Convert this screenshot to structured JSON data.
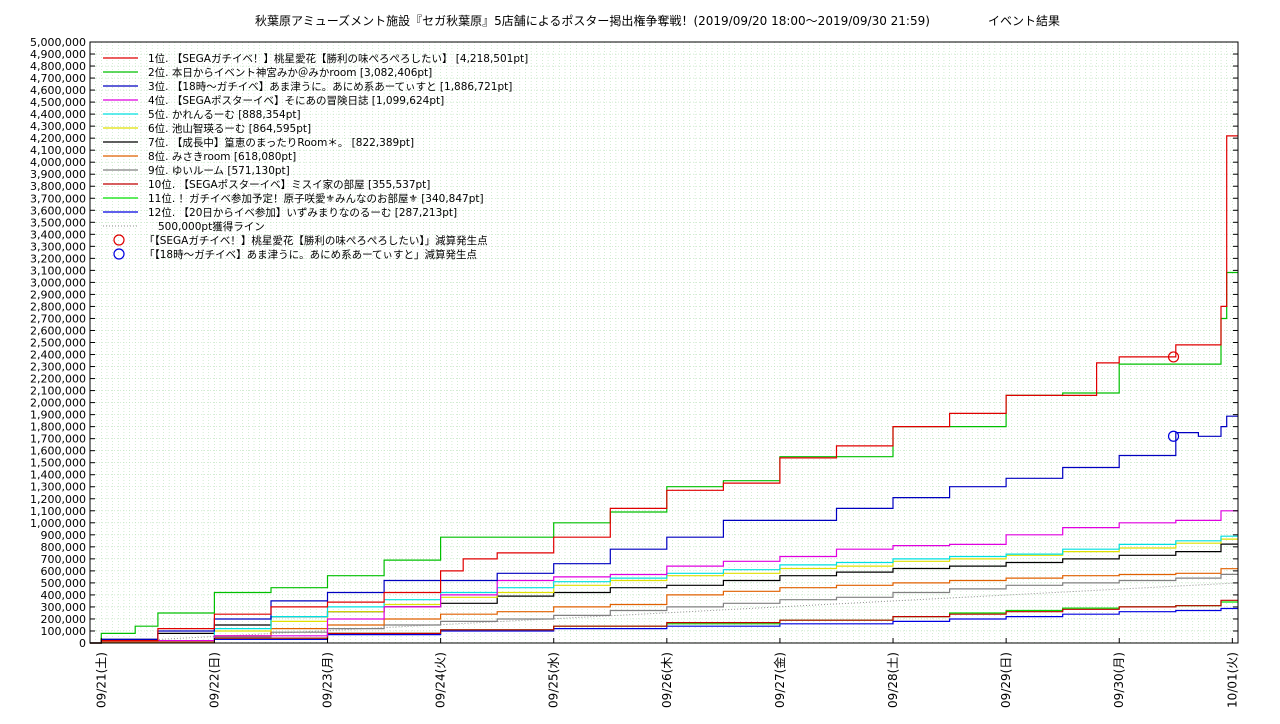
{
  "chart_data": {
    "type": "line",
    "title": "秋葉原アミューズメント施設『セガ秋葉原』5店舗によるポスター掲出権争奪戦！(2019/09/20 18:00〜2019/09/30 21:59)",
    "subtitle": "イベント結果",
    "xlabel": "",
    "ylabel": "",
    "ylim": [
      0,
      5000000
    ],
    "yticks": [
      0,
      100000,
      200000,
      300000,
      400000,
      500000,
      600000,
      700000,
      800000,
      900000,
      1000000,
      1100000,
      1200000,
      1300000,
      1400000,
      1500000,
      1600000,
      1700000,
      1800000,
      1900000,
      2000000,
      2100000,
      2200000,
      2300000,
      2400000,
      2500000,
      2600000,
      2700000,
      2800000,
      2900000,
      3000000,
      3100000,
      3200000,
      3300000,
      3400000,
      3500000,
      3600000,
      3700000,
      3800000,
      3900000,
      4000000,
      4100000,
      4200000,
      4300000,
      4400000,
      4500000,
      4600000,
      4700000,
      4800000,
      4900000,
      5000000
    ],
    "ytick_labels": [
      "0",
      "100,000",
      "200,000",
      "300,000",
      "400,000",
      "500,000",
      "600,000",
      "700,000",
      "800,000",
      "900,000",
      "1,000,000",
      "1,100,000",
      "1,200,000",
      "1,300,000",
      "1,400,000",
      "1,500,000",
      "1,600,000",
      "1,700,000",
      "1,800,000",
      "1,900,000",
      "2,000,000",
      "2,100,000",
      "2,200,000",
      "2,300,000",
      "2,400,000",
      "2,500,000",
      "2,600,000",
      "2,700,000",
      "2,800,000",
      "2,900,000",
      "3,000,000",
      "3,100,000",
      "3,200,000",
      "3,300,000",
      "3,400,000",
      "3,500,000",
      "3,600,000",
      "3,700,000",
      "3,800,000",
      "3,900,000",
      "4,000,000",
      "4,100,000",
      "4,200,000",
      "4,300,000",
      "4,400,000",
      "4,500,000",
      "4,600,000",
      "4,700,000",
      "4,800,000",
      "4,900,000",
      "5,000,000"
    ],
    "xlim": [
      -0.1,
      10.05
    ],
    "xticks": [
      0,
      1,
      2,
      3,
      4,
      5,
      6,
      7,
      8,
      9,
      10
    ],
    "xtick_labels": [
      "09/21(土)",
      "09/22(日)",
      "09/23(月)",
      "09/24(火)",
      "09/25(水)",
      "09/26(木)",
      "09/27(金)",
      "09/28(土)",
      "09/29(日)",
      "09/30(月)",
      "10/01(火)"
    ],
    "grid": true,
    "legend_position": "top-left",
    "series": [
      {
        "name": "1位. 【SEGAガチイベ！】桃星愛花【勝利の味ぺろぺろしたい】 [4,218,501pt]",
        "color": "#e00000",
        "points": [
          [
            -0.1,
            0
          ],
          [
            0,
            20000
          ],
          [
            0.5,
            120000
          ],
          [
            1,
            240000
          ],
          [
            1.5,
            300000
          ],
          [
            2,
            340000
          ],
          [
            2.5,
            420000
          ],
          [
            3,
            600000
          ],
          [
            3.2,
            700000
          ],
          [
            3.5,
            750000
          ],
          [
            4,
            880000
          ],
          [
            4.5,
            1120000
          ],
          [
            5,
            1270000
          ],
          [
            5.5,
            1330000
          ],
          [
            6,
            1540000
          ],
          [
            6.5,
            1640000
          ],
          [
            7,
            1800000
          ],
          [
            7.5,
            1910000
          ],
          [
            8,
            2060000
          ],
          [
            8.8,
            2330000
          ],
          [
            9,
            2380000
          ],
          [
            9.5,
            2480000
          ],
          [
            9.9,
            2800000
          ],
          [
            9.95,
            4218501
          ],
          [
            10.05,
            4218501
          ]
        ]
      },
      {
        "name": "2位. 本日からイベント神宮みか＠みかroom [3,082,406pt]",
        "color": "#00c000",
        "points": [
          [
            -0.1,
            0
          ],
          [
            0,
            80000
          ],
          [
            0.3,
            140000
          ],
          [
            0.5,
            250000
          ],
          [
            1,
            420000
          ],
          [
            1.5,
            460000
          ],
          [
            2,
            560000
          ],
          [
            2.5,
            690000
          ],
          [
            3,
            880000
          ],
          [
            3.5,
            880000
          ],
          [
            4,
            1000000
          ],
          [
            4.5,
            1090000
          ],
          [
            5,
            1300000
          ],
          [
            5.5,
            1350000
          ],
          [
            6,
            1550000
          ],
          [
            6.5,
            1550000
          ],
          [
            7,
            1800000
          ],
          [
            7.5,
            1800000
          ],
          [
            8,
            2060000
          ],
          [
            8.5,
            2080000
          ],
          [
            9,
            2320000
          ],
          [
            9.7,
            2320000
          ],
          [
            9.9,
            2700000
          ],
          [
            9.95,
            3082406
          ],
          [
            10.05,
            3082406
          ]
        ]
      },
      {
        "name": "3位. 【18時〜ガチイベ】あま津うに。あにめ系あーてぃすと [1,886,721pt]",
        "color": "#0000c0",
        "points": [
          [
            -0.1,
            0
          ],
          [
            0,
            30000
          ],
          [
            0.5,
            100000
          ],
          [
            1,
            200000
          ],
          [
            1.5,
            350000
          ],
          [
            2,
            420000
          ],
          [
            2.5,
            520000
          ],
          [
            3,
            520000
          ],
          [
            3.5,
            580000
          ],
          [
            4,
            660000
          ],
          [
            4.5,
            780000
          ],
          [
            5,
            880000
          ],
          [
            5.5,
            1020000
          ],
          [
            6,
            1020000
          ],
          [
            6.5,
            1120000
          ],
          [
            7,
            1210000
          ],
          [
            7.5,
            1300000
          ],
          [
            8,
            1370000
          ],
          [
            8.5,
            1460000
          ],
          [
            9,
            1560000
          ],
          [
            9.5,
            1750000
          ],
          [
            9.7,
            1720000
          ],
          [
            9.9,
            1800000
          ],
          [
            9.95,
            1886721
          ],
          [
            10.05,
            1886721
          ]
        ]
      },
      {
        "name": "4位. 【SEGAポスターイベ】そにあの冒険日誌 [1,099,624pt]",
        "color": "#e000e0",
        "points": [
          [
            -0.1,
            0
          ],
          [
            0,
            20000
          ],
          [
            1,
            60000
          ],
          [
            2,
            200000
          ],
          [
            2.5,
            300000
          ],
          [
            3,
            400000
          ],
          [
            3.5,
            520000
          ],
          [
            4,
            550000
          ],
          [
            4.5,
            570000
          ],
          [
            5,
            640000
          ],
          [
            5.5,
            680000
          ],
          [
            6,
            720000
          ],
          [
            6.5,
            780000
          ],
          [
            7,
            810000
          ],
          [
            7.5,
            820000
          ],
          [
            8,
            900000
          ],
          [
            8.5,
            960000
          ],
          [
            9,
            1000000
          ],
          [
            9.5,
            1020000
          ],
          [
            9.9,
            1100000
          ],
          [
            10.05,
            1099624
          ]
        ]
      },
      {
        "name": "5位. かれんるーむ [888,354pt]",
        "color": "#00e0e0",
        "points": [
          [
            -0.1,
            0
          ],
          [
            0,
            20000
          ],
          [
            1,
            120000
          ],
          [
            1.5,
            220000
          ],
          [
            2,
            300000
          ],
          [
            2.5,
            360000
          ],
          [
            3,
            420000
          ],
          [
            3.5,
            460000
          ],
          [
            4,
            510000
          ],
          [
            4.5,
            540000
          ],
          [
            5,
            580000
          ],
          [
            5.5,
            610000
          ],
          [
            6,
            650000
          ],
          [
            6.5,
            670000
          ],
          [
            7,
            700000
          ],
          [
            7.5,
            720000
          ],
          [
            8,
            740000
          ],
          [
            8.5,
            780000
          ],
          [
            9,
            820000
          ],
          [
            9.5,
            850000
          ],
          [
            9.9,
            888354
          ],
          [
            10.05,
            888354
          ]
        ]
      },
      {
        "name": "6位. 池山智瑛るーむ [864,595pt]",
        "color": "#e0e000",
        "points": [
          [
            -0.1,
            0
          ],
          [
            0,
            20000
          ],
          [
            1,
            100000
          ],
          [
            1.5,
            180000
          ],
          [
            2,
            260000
          ],
          [
            2.5,
            320000
          ],
          [
            3,
            380000
          ],
          [
            3.5,
            420000
          ],
          [
            4,
            480000
          ],
          [
            4.5,
            520000
          ],
          [
            5,
            560000
          ],
          [
            5.5,
            580000
          ],
          [
            6,
            620000
          ],
          [
            6.5,
            640000
          ],
          [
            7,
            680000
          ],
          [
            7.5,
            700000
          ],
          [
            8,
            730000
          ],
          [
            8.5,
            760000
          ],
          [
            9,
            790000
          ],
          [
            9.5,
            830000
          ],
          [
            9.9,
            864595
          ],
          [
            10.05,
            864595
          ]
        ]
      },
      {
        "name": "7位. 【成長中】篁恵のまったりRoom＊。 [822,389pt]",
        "color": "#000000",
        "points": [
          [
            -0.1,
            0
          ],
          [
            0,
            30000
          ],
          [
            0.5,
            80000
          ],
          [
            1,
            150000
          ],
          [
            1.5,
            220000
          ],
          [
            2,
            260000
          ],
          [
            2.5,
            300000
          ],
          [
            3,
            330000
          ],
          [
            3.5,
            390000
          ],
          [
            4,
            420000
          ],
          [
            4.5,
            460000
          ],
          [
            5,
            480000
          ],
          [
            5.5,
            520000
          ],
          [
            6,
            560000
          ],
          [
            6.5,
            590000
          ],
          [
            7,
            620000
          ],
          [
            7.5,
            640000
          ],
          [
            8,
            670000
          ],
          [
            8.5,
            700000
          ],
          [
            9,
            730000
          ],
          [
            9.5,
            760000
          ],
          [
            9.9,
            822389
          ],
          [
            10.05,
            822389
          ]
        ]
      },
      {
        "name": "8位. みさきroom [618,080pt]",
        "color": "#e06000",
        "points": [
          [
            -0.1,
            0
          ],
          [
            0,
            10000
          ],
          [
            1,
            60000
          ],
          [
            1.5,
            120000
          ],
          [
            2,
            150000
          ],
          [
            2.5,
            200000
          ],
          [
            3,
            240000
          ],
          [
            3.5,
            260000
          ],
          [
            4,
            300000
          ],
          [
            4.5,
            320000
          ],
          [
            5,
            400000
          ],
          [
            5.5,
            430000
          ],
          [
            6,
            460000
          ],
          [
            6.5,
            480000
          ],
          [
            7,
            500000
          ],
          [
            7.5,
            520000
          ],
          [
            8,
            540000
          ],
          [
            8.5,
            560000
          ],
          [
            9,
            570000
          ],
          [
            9.5,
            580000
          ],
          [
            9.9,
            618080
          ],
          [
            10.05,
            618080
          ]
        ]
      },
      {
        "name": "9位. ゆいルーム [571,130pt]",
        "color": "#808080",
        "points": [
          [
            -0.1,
            0
          ],
          [
            0,
            10000
          ],
          [
            1,
            50000
          ],
          [
            1.5,
            90000
          ],
          [
            2,
            120000
          ],
          [
            2.5,
            150000
          ],
          [
            3,
            180000
          ],
          [
            3.5,
            200000
          ],
          [
            4,
            230000
          ],
          [
            4.5,
            270000
          ],
          [
            5,
            300000
          ],
          [
            5.5,
            330000
          ],
          [
            6,
            360000
          ],
          [
            6.5,
            380000
          ],
          [
            7,
            420000
          ],
          [
            7.5,
            450000
          ],
          [
            8,
            480000
          ],
          [
            8.5,
            500000
          ],
          [
            9,
            520000
          ],
          [
            9.5,
            540000
          ],
          [
            9.9,
            571130
          ],
          [
            10.05,
            571130
          ]
        ]
      },
      {
        "name": "10位. 【SEGAポスターイベ】ミスイ家の部屋 [355,537pt]",
        "color": "#c00000",
        "points": [
          [
            -0.1,
            0
          ],
          [
            0,
            10000
          ],
          [
            1,
            40000
          ],
          [
            2,
            80000
          ],
          [
            3,
            110000
          ],
          [
            4,
            140000
          ],
          [
            5,
            170000
          ],
          [
            6,
            190000
          ],
          [
            7,
            220000
          ],
          [
            7.5,
            240000
          ],
          [
            8,
            260000
          ],
          [
            8.5,
            280000
          ],
          [
            9,
            300000
          ],
          [
            9.5,
            310000
          ],
          [
            9.9,
            355537
          ],
          [
            10.05,
            355537
          ]
        ]
      },
      {
        "name": "11位. ！ガチイベ参加予定！原子咲愛⚜みんなのお部屋⚜ [340,847pt]",
        "color": "#00e000",
        "points": [
          [
            -0.1,
            0
          ],
          [
            0,
            10000
          ],
          [
            1,
            40000
          ],
          [
            2,
            80000
          ],
          [
            3,
            110000
          ],
          [
            4,
            140000
          ],
          [
            5,
            160000
          ],
          [
            6,
            190000
          ],
          [
            7,
            220000
          ],
          [
            7.5,
            250000
          ],
          [
            8,
            270000
          ],
          [
            8.5,
            290000
          ],
          [
            9,
            300000
          ],
          [
            9.5,
            310000
          ],
          [
            9.9,
            340847
          ],
          [
            10.05,
            340847
          ]
        ]
      },
      {
        "name": "12位. 【20日からイベ参加】いずみまりなのるーむ [287,213pt]",
        "color": "#0000e0",
        "points": [
          [
            -0.1,
            0
          ],
          [
            0,
            5000
          ],
          [
            1,
            30000
          ],
          [
            2,
            70000
          ],
          [
            3,
            100000
          ],
          [
            4,
            120000
          ],
          [
            5,
            140000
          ],
          [
            6,
            160000
          ],
          [
            7,
            180000
          ],
          [
            7.5,
            200000
          ],
          [
            8,
            220000
          ],
          [
            8.5,
            240000
          ],
          [
            9,
            260000
          ],
          [
            9.5,
            270000
          ],
          [
            9.9,
            287213
          ],
          [
            10.05,
            287213
          ]
        ]
      }
    ],
    "reference_line": {
      "name": "500,000pt獲得ライン",
      "color": "#909090",
      "points": [
        [
          -0.1,
          0
        ],
        [
          10.05,
          500000
        ]
      ]
    },
    "annotations": [
      {
        "name": "「【SEGAガチイベ！】桃星愛花【勝利の味ぺろぺろしたい】」減算発生点",
        "color": "#e00000",
        "x": 9.48,
        "y": 2380000
      },
      {
        "name": "「【18時〜ガチイベ】あま津うに。あにめ系あーてぃすと」減算発生点",
        "color": "#0000e0",
        "x": 9.48,
        "y": 1720000
      }
    ]
  }
}
